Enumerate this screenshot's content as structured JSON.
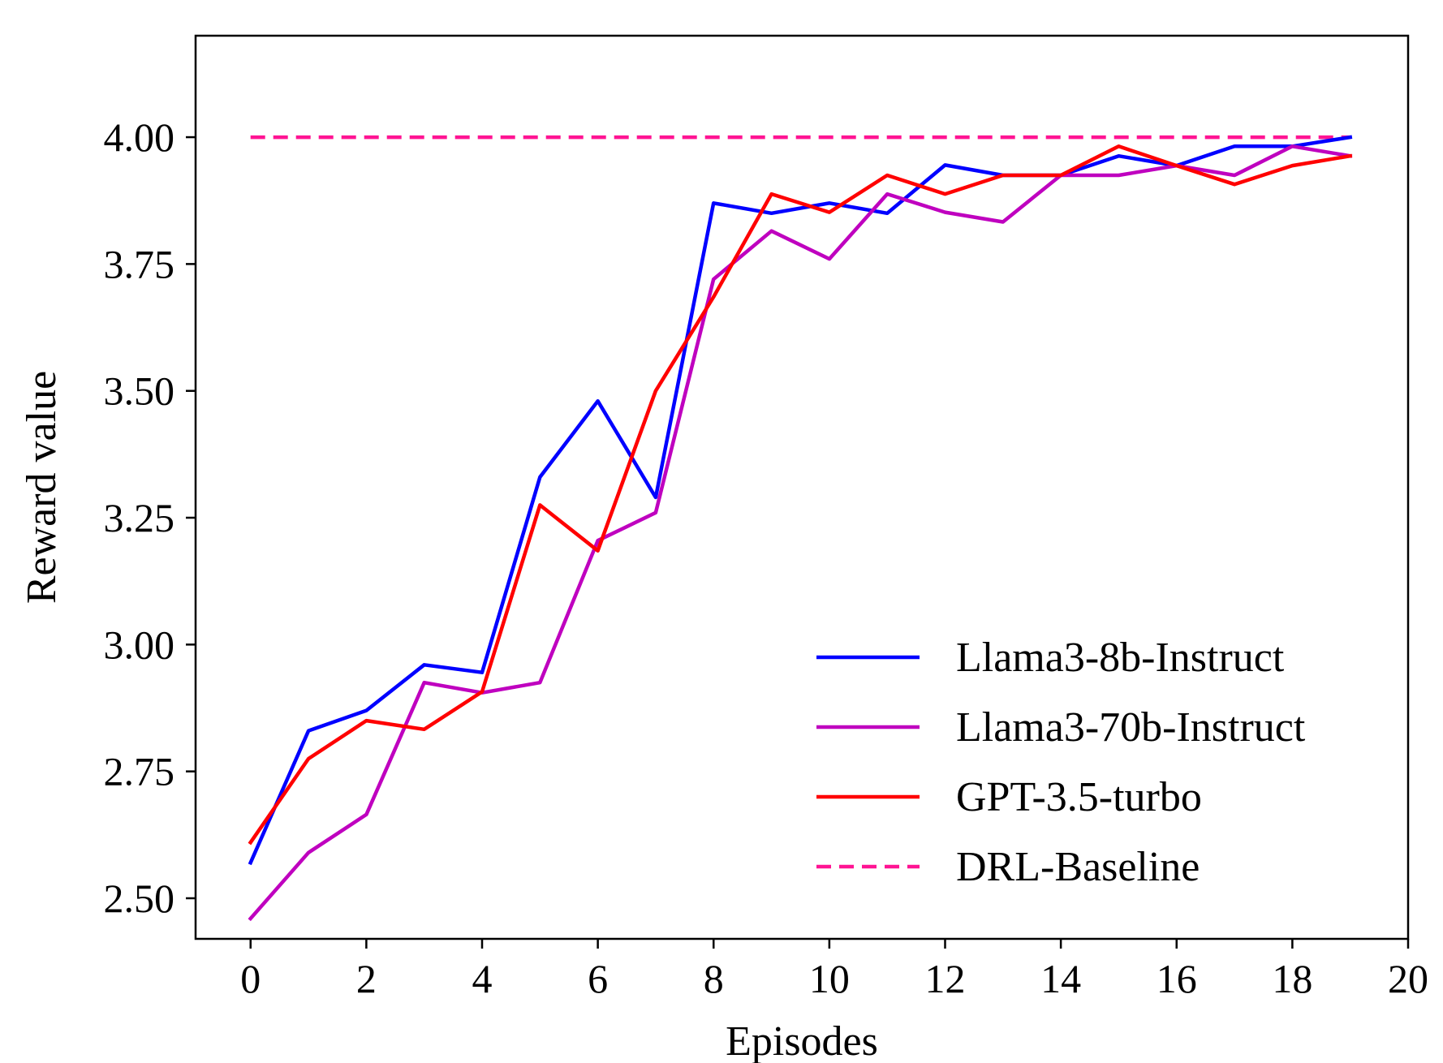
{
  "chart_data": {
    "type": "line",
    "xlabel": "Episodes",
    "ylabel": "Reward value",
    "xlim": [
      -0.95,
      20
    ],
    "ylim": [
      2.42,
      4.2
    ],
    "xticks": [
      0,
      2,
      4,
      6,
      8,
      10,
      12,
      14,
      16,
      18,
      20
    ],
    "xtick_labels": [
      "0",
      "2",
      "4",
      "6",
      "8",
      "10",
      "12",
      "14",
      "16",
      "18",
      "20"
    ],
    "yticks": [
      2.5,
      2.75,
      3.0,
      3.25,
      3.5,
      3.75,
      4.0
    ],
    "ytick_labels": [
      "2.50",
      "2.75",
      "3.00",
      "3.25",
      "3.50",
      "3.75",
      "4.00"
    ],
    "grid": false,
    "legend_position": "lower-right",
    "x": [
      0,
      1,
      2,
      3,
      4,
      5,
      6,
      7,
      8,
      9,
      10,
      11,
      12,
      13,
      14,
      15,
      16,
      17,
      18,
      19
    ],
    "series": [
      {
        "name": "Llama3-8b-Instruct",
        "color": "#0000ff",
        "dash": "solid",
        "values": [
          2.57,
          2.83,
          2.87,
          2.96,
          2.945,
          3.33,
          3.48,
          3.29,
          3.87,
          3.85,
          3.87,
          3.85,
          3.945,
          3.925,
          3.925,
          3.963,
          3.944,
          3.982,
          3.982,
          4.0
        ]
      },
      {
        "name": "Llama3-70b-Instruct",
        "color": "#bf00bf",
        "dash": "solid",
        "values": [
          2.46,
          2.59,
          2.665,
          2.925,
          2.905,
          2.925,
          3.205,
          3.26,
          3.72,
          3.815,
          3.76,
          3.888,
          3.852,
          3.833,
          3.925,
          3.925,
          3.944,
          3.925,
          3.982,
          3.963
        ]
      },
      {
        "name": "GPT-3.5-turbo",
        "color": "#ff0000",
        "dash": "solid",
        "values": [
          2.61,
          2.775,
          2.85,
          2.833,
          2.907,
          3.275,
          3.185,
          3.5,
          3.685,
          3.888,
          3.852,
          3.925,
          3.888,
          3.925,
          3.925,
          3.982,
          3.944,
          3.907,
          3.944,
          3.963
        ]
      },
      {
        "name": "DRL-Baseline",
        "color": "#ff1493",
        "dash": "dashed",
        "values": [
          4.0,
          4.0,
          4.0,
          4.0,
          4.0,
          4.0,
          4.0,
          4.0,
          4.0,
          4.0,
          4.0,
          4.0,
          4.0,
          4.0,
          4.0,
          4.0,
          4.0,
          4.0,
          4.0,
          4.0
        ]
      }
    ]
  }
}
